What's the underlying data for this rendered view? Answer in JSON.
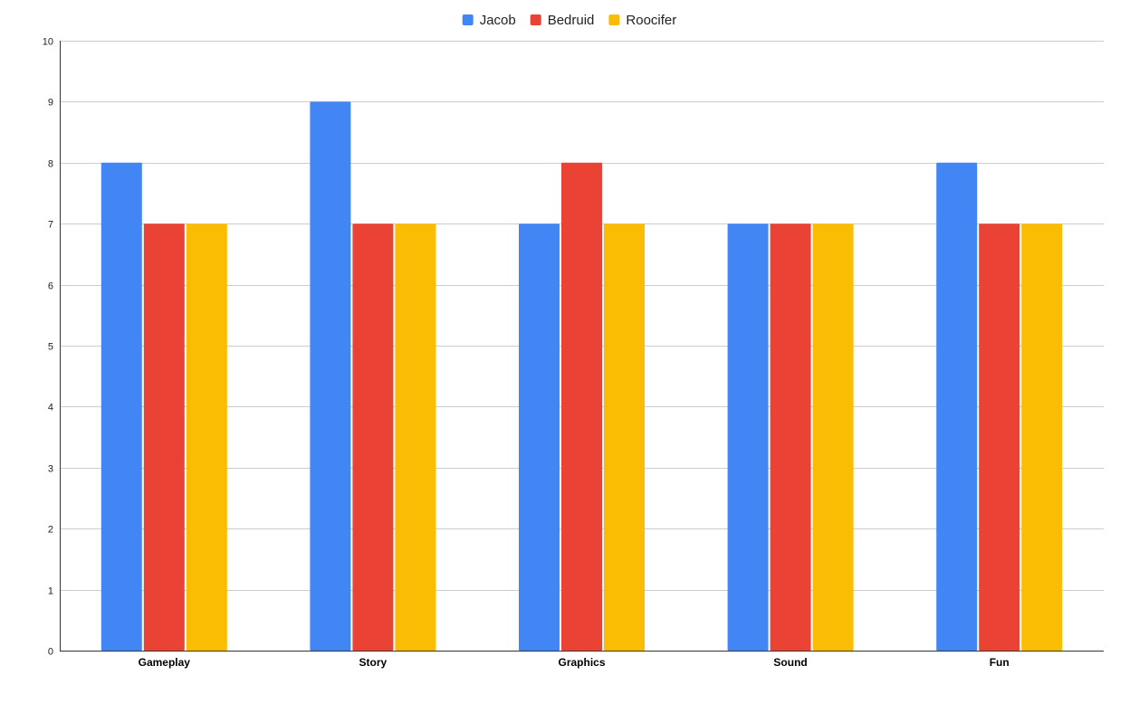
{
  "chart_data": {
    "type": "bar",
    "categories": [
      "Gameplay",
      "Story",
      "Graphics",
      "Sound",
      "Fun"
    ],
    "series": [
      {
        "name": "Jacob",
        "color": "#4285f4",
        "values": [
          8,
          9,
          7,
          7,
          8
        ]
      },
      {
        "name": "Bedruid",
        "color": "#ea4335",
        "values": [
          7,
          7,
          8,
          7,
          7
        ]
      },
      {
        "name": "Roocifer",
        "color": "#fbbc04",
        "values": [
          7,
          7,
          7,
          7,
          7
        ]
      }
    ],
    "ylim": [
      0,
      10
    ],
    "yticks": [
      0,
      1,
      2,
      3,
      4,
      5,
      6,
      7,
      8,
      9,
      10
    ],
    "grid": true,
    "legend_position": "top-center"
  }
}
